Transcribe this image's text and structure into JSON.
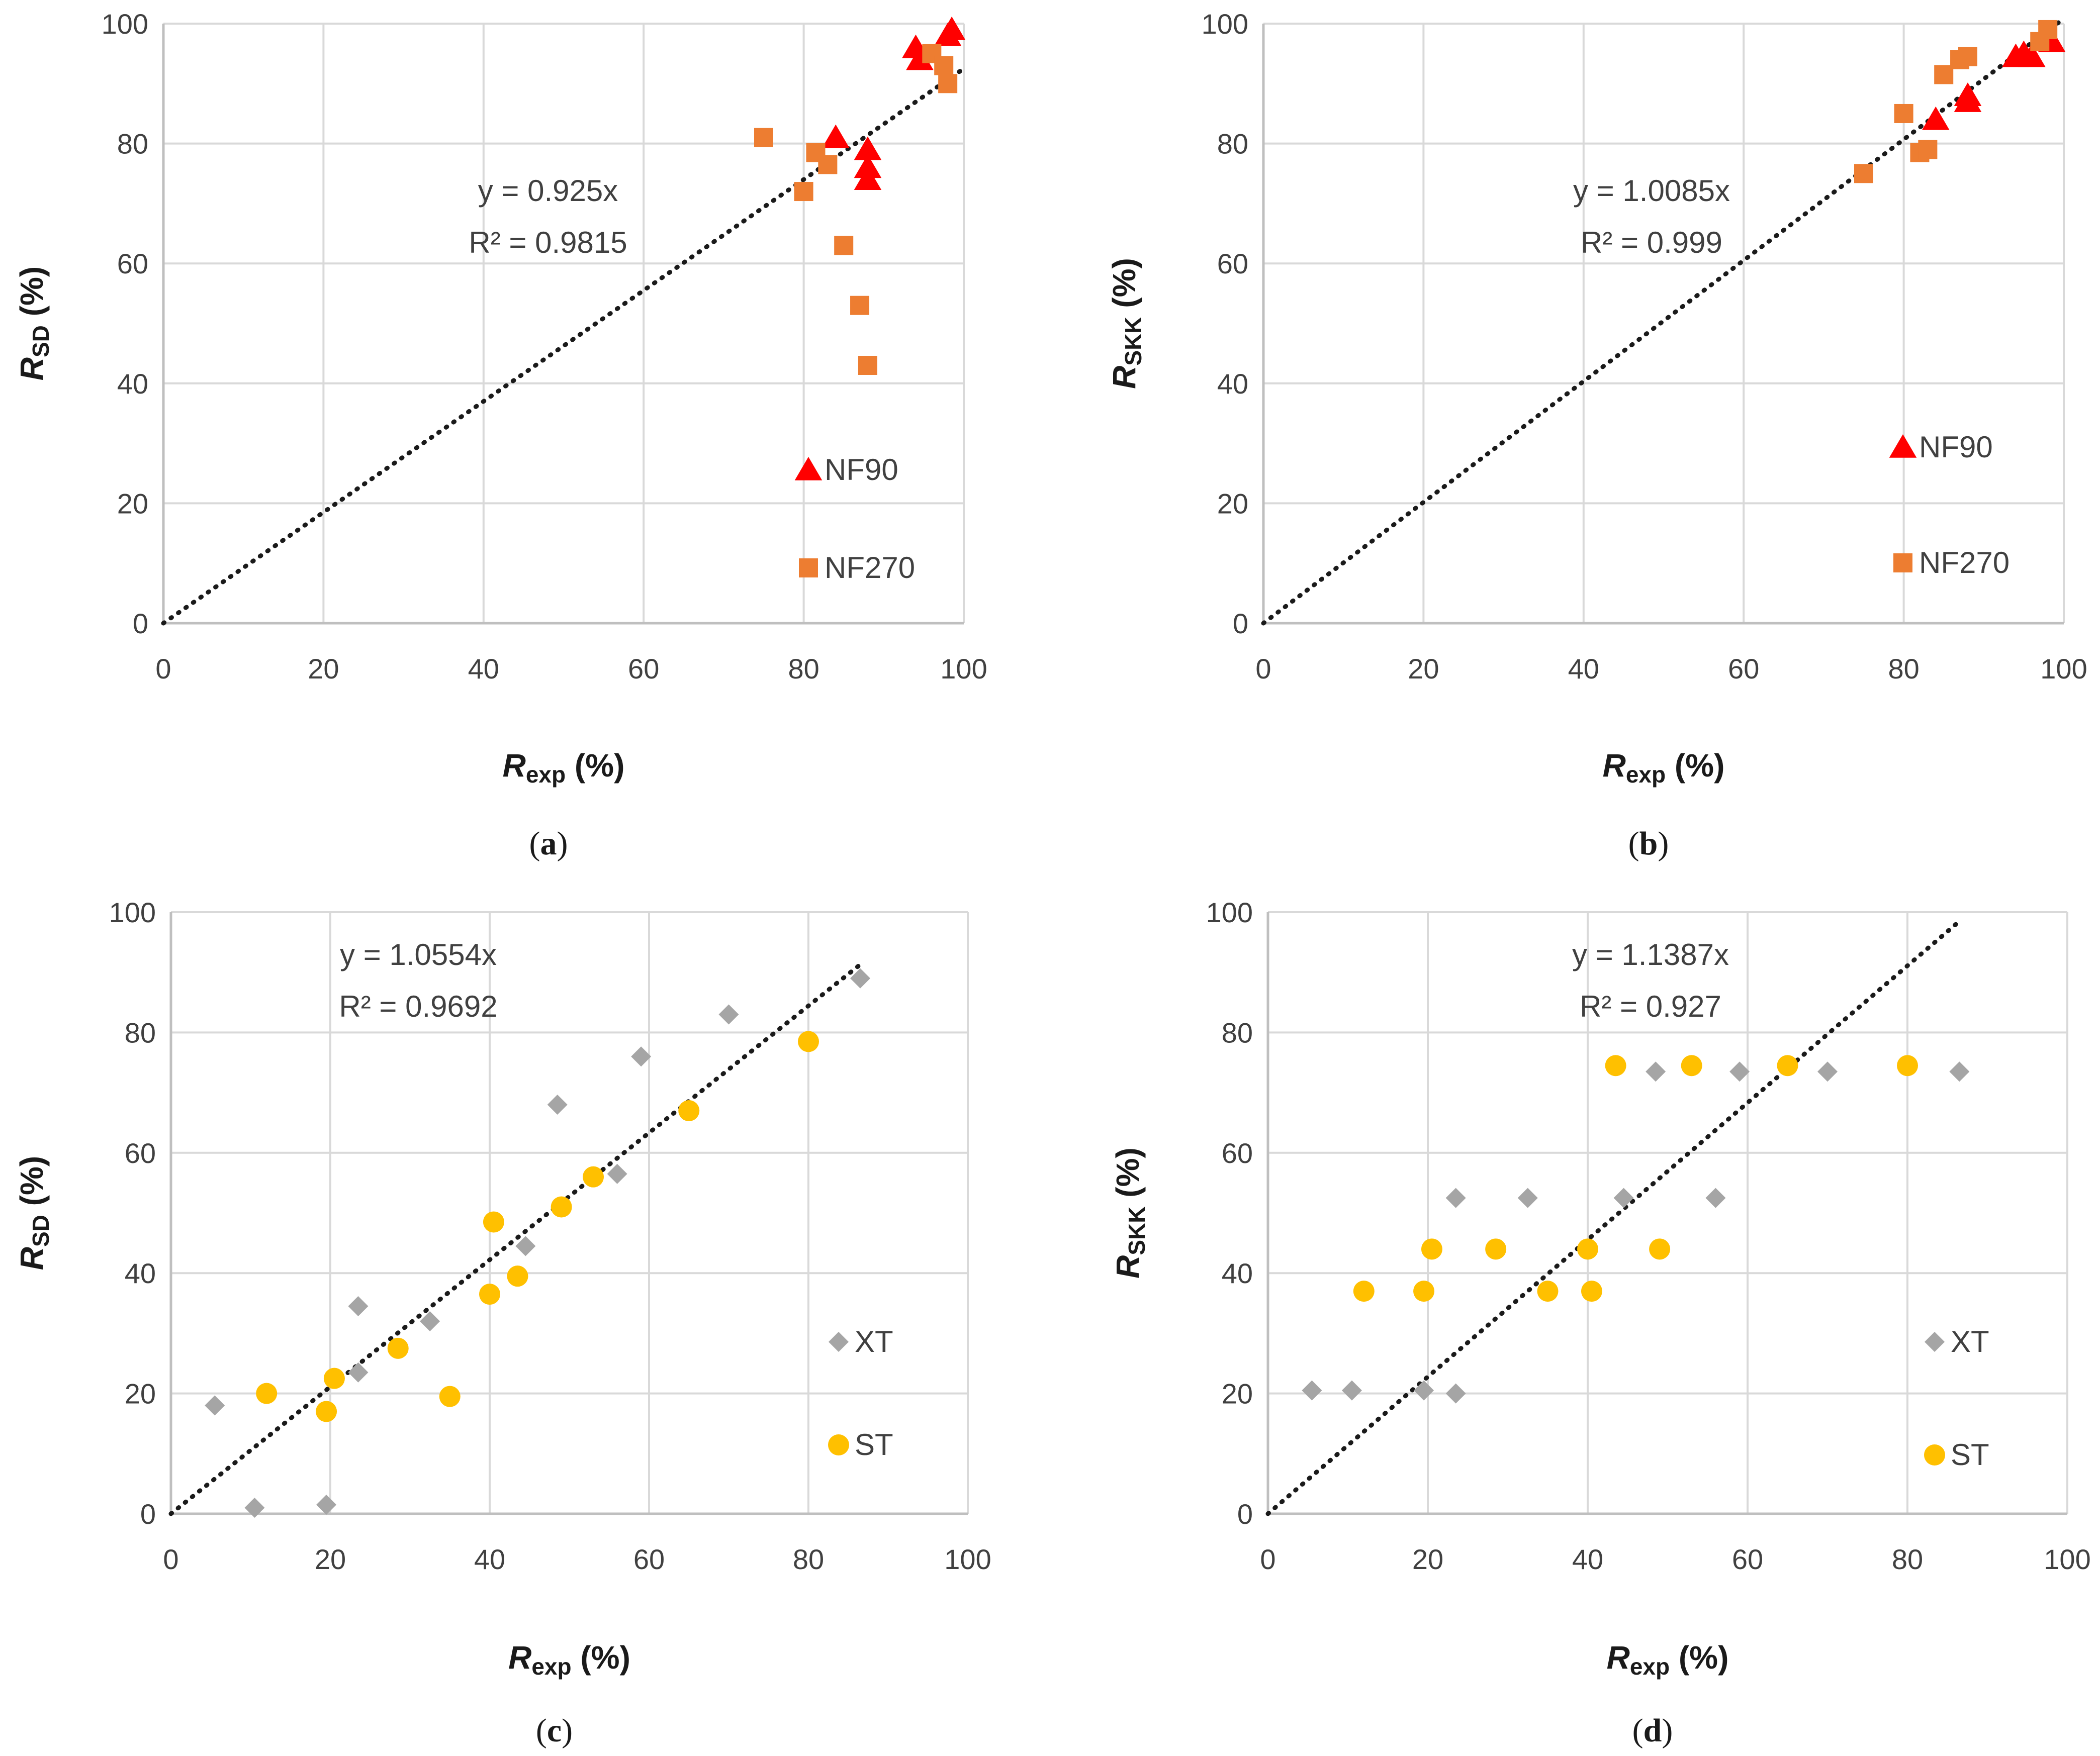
{
  "colors": {
    "nf90": "#ff0000",
    "nf270": "#ed7d31",
    "xt": "#a5a5a5",
    "st": "#ffc000",
    "grid": "#d9d9d9",
    "axis": "#bfbfbf",
    "trend": "#1a1a1a"
  },
  "chart_data": [
    {
      "panel": "a",
      "caption": "a",
      "type": "scatter",
      "xlabel": {
        "main": "R",
        "sub": "exp",
        "unit": " (%)"
      },
      "ylabel": {
        "main": "R",
        "sub": "SD",
        "unit": " (%)"
      },
      "xlim": [
        0,
        100
      ],
      "ylim": [
        0,
        100
      ],
      "xticks": [
        "0",
        "20",
        "40",
        "60",
        "80",
        "100"
      ],
      "yticks": [
        "0",
        "20",
        "40",
        "60",
        "80",
        "100"
      ],
      "grid": true,
      "equation": "y = 0.925x",
      "r2": "R² = 0.9815",
      "trend": {
        "slope": 0.925,
        "x_end": 100
      },
      "series": [
        {
          "name": "NF90",
          "marker": "triangle",
          "color": "#ff0000",
          "points": [
            [
              84,
              81
            ],
            [
              88,
              79
            ],
            [
              88,
              76
            ],
            [
              88,
              74
            ],
            [
              94,
              96
            ],
            [
              94.5,
              94
            ],
            [
              98,
              98
            ],
            [
              98.5,
              99
            ]
          ]
        },
        {
          "name": "NF270",
          "marker": "square",
          "color": "#ed7d31",
          "points": [
            [
              75,
              81
            ],
            [
              80,
              72
            ],
            [
              81.5,
              78.5
            ],
            [
              83,
              76.5
            ],
            [
              85,
              63
            ],
            [
              87,
              53
            ],
            [
              88,
              43
            ],
            [
              96,
              95
            ],
            [
              97.5,
              93
            ],
            [
              98,
              90
            ]
          ]
        }
      ]
    },
    {
      "panel": "b",
      "caption": "b",
      "type": "scatter",
      "xlabel": {
        "main": "R",
        "sub": "exp",
        "unit": " (%)"
      },
      "ylabel": {
        "main": "R",
        "sub": "SKK",
        "unit": " (%)"
      },
      "xlim": [
        0,
        100
      ],
      "ylim": [
        0,
        100
      ],
      "xticks": [
        "0",
        "20",
        "40",
        "60",
        "80",
        "100"
      ],
      "yticks": [
        "0",
        "20",
        "40",
        "60",
        "80",
        "100"
      ],
      "grid": true,
      "equation": "y = 1.0085x",
      "r2": "R² = 0.999",
      "trend": {
        "slope": 1.0085,
        "x_end": 100
      },
      "series": [
        {
          "name": "NF90",
          "marker": "triangle",
          "color": "#ff0000",
          "points": [
            [
              84,
              84
            ],
            [
              88,
              88
            ],
            [
              88,
              87
            ],
            [
              94,
              94.5
            ],
            [
              95,
              95
            ],
            [
              96,
              94.5
            ],
            [
              98,
              98
            ],
            [
              98.5,
              97
            ]
          ]
        },
        {
          "name": "NF270",
          "marker": "square",
          "color": "#ed7d31",
          "points": [
            [
              75,
              75
            ],
            [
              80,
              85
            ],
            [
              82,
              78.5
            ],
            [
              83,
              79
            ],
            [
              85,
              91.5
            ],
            [
              87,
              94
            ],
            [
              88,
              94.5
            ],
            [
              97,
              97
            ],
            [
              98,
              99
            ]
          ]
        }
      ]
    },
    {
      "panel": "c",
      "caption": "c",
      "type": "scatter",
      "xlabel": {
        "main": "R",
        "sub": "exp",
        "unit": " (%)"
      },
      "ylabel": {
        "main": "R",
        "sub": "SD",
        "unit": " (%)"
      },
      "xlim": [
        0,
        100
      ],
      "ylim": [
        0,
        100
      ],
      "xticks": [
        "0",
        "20",
        "40",
        "60",
        "80",
        "100"
      ],
      "yticks": [
        "0",
        "20",
        "40",
        "60",
        "80",
        "100"
      ],
      "grid": true,
      "equation": "y = 1.0554x",
      "r2": "R² = 0.9692",
      "trend": {
        "slope": 1.0554,
        "x_end": 86.5
      },
      "series": [
        {
          "name": "XT",
          "marker": "diamond",
          "color": "#a5a5a5",
          "points": [
            [
              5.5,
              18
            ],
            [
              10.5,
              1
            ],
            [
              19.5,
              1.5
            ],
            [
              23.5,
              34.5
            ],
            [
              23.5,
              23.5
            ],
            [
              32.5,
              32
            ],
            [
              44.5,
              44.5
            ],
            [
              48.5,
              68
            ],
            [
              56,
              56.5
            ],
            [
              59,
              76
            ],
            [
              70,
              83
            ],
            [
              86.5,
              89
            ]
          ]
        },
        {
          "name": "ST",
          "marker": "circle",
          "color": "#ffc000",
          "points": [
            [
              12,
              20
            ],
            [
              19.5,
              17
            ],
            [
              20.5,
              22.5
            ],
            [
              28.5,
              27.5
            ],
            [
              35,
              19.5
            ],
            [
              40,
              36.5
            ],
            [
              40.5,
              48.5
            ],
            [
              43.5,
              39.5
            ],
            [
              49,
              51
            ],
            [
              53,
              56
            ],
            [
              65,
              67
            ],
            [
              80,
              78.5
            ]
          ]
        }
      ]
    },
    {
      "panel": "d",
      "caption": "d",
      "type": "scatter",
      "xlabel": {
        "main": "R",
        "sub": "exp",
        "unit": " (%)"
      },
      "ylabel": {
        "main": "R",
        "sub": "SKK",
        "unit": " (%)"
      },
      "xlim": [
        0,
        100
      ],
      "ylim": [
        0,
        100
      ],
      "xticks": [
        "0",
        "20",
        "40",
        "60",
        "80",
        "100"
      ],
      "yticks": [
        "0",
        "20",
        "40",
        "60",
        "80",
        "100"
      ],
      "grid": true,
      "equation": "y = 1.1387x",
      "r2": "R² = 0.927",
      "trend": {
        "slope": 1.1387,
        "x_end": 86.5
      },
      "series": [
        {
          "name": "XT",
          "marker": "diamond",
          "color": "#a5a5a5",
          "points": [
            [
              5.5,
              20.5
            ],
            [
              10.5,
              20.5
            ],
            [
              19.5,
              20.5
            ],
            [
              23.5,
              20
            ],
            [
              23.5,
              52.5
            ],
            [
              32.5,
              52.5
            ],
            [
              44.5,
              52.5
            ],
            [
              48.5,
              73.5
            ],
            [
              56,
              52.5
            ],
            [
              59,
              73.5
            ],
            [
              70,
              73.5
            ],
            [
              86.5,
              73.5
            ]
          ]
        },
        {
          "name": "ST",
          "marker": "circle",
          "color": "#ffc000",
          "points": [
            [
              12,
              37
            ],
            [
              19.5,
              37
            ],
            [
              20.5,
              44
            ],
            [
              28.5,
              44
            ],
            [
              35,
              37
            ],
            [
              40,
              44
            ],
            [
              40.5,
              37
            ],
            [
              43.5,
              74.5
            ],
            [
              49,
              44
            ],
            [
              53,
              74.5
            ],
            [
              65,
              74.5
            ],
            [
              80,
              74.5
            ]
          ]
        }
      ]
    }
  ]
}
